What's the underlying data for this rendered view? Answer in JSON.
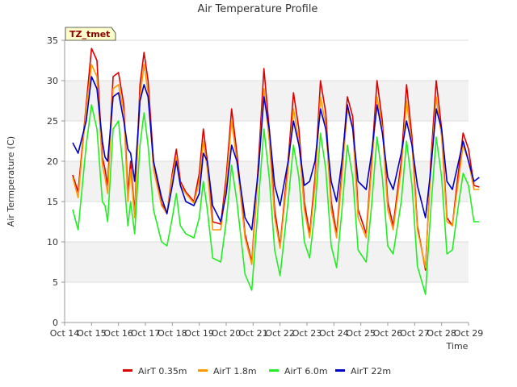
{
  "chart_data": {
    "type": "line",
    "title": "Air Temperature Profile",
    "xlabel": "Time",
    "ylabel": "Air Termperature (C)",
    "annotation": "TZ_tmet",
    "xlim": [
      14,
      29
    ],
    "ylim": [
      0,
      35
    ],
    "x_ticks": [
      {
        "value": 14,
        "label": "Oct 14"
      },
      {
        "value": 15,
        "label": "Oct 15"
      },
      {
        "value": 16,
        "label": "Oct 16"
      },
      {
        "value": 17,
        "label": "Oct 17"
      },
      {
        "value": 18,
        "label": "Oct 18"
      },
      {
        "value": 19,
        "label": "Oct 19"
      },
      {
        "value": 20,
        "label": "Oct 20"
      },
      {
        "value": 21,
        "label": "Oct 21"
      },
      {
        "value": 22,
        "label": "Oct 22"
      },
      {
        "value": 23,
        "label": "Oct 23"
      },
      {
        "value": 24,
        "label": "Oct 24"
      },
      {
        "value": 25,
        "label": "Oct 25"
      },
      {
        "value": 26,
        "label": "Oct 26"
      },
      {
        "value": 27,
        "label": "Oct 27"
      },
      {
        "value": 28,
        "label": "Oct 28"
      },
      {
        "value": 29,
        "label": "Oct 29"
      }
    ],
    "y_ticks": [
      0,
      5,
      10,
      15,
      20,
      25,
      30,
      35
    ],
    "legend_position": "bottom",
    "series": [
      {
        "name": "AirT 0.35m",
        "color": "#dd0000",
        "points": [
          [
            14.3,
            18.3
          ],
          [
            14.5,
            16.2
          ],
          [
            14.8,
            27.0
          ],
          [
            15.0,
            34.0
          ],
          [
            15.2,
            32.5
          ],
          [
            15.4,
            20.5
          ],
          [
            15.5,
            19.0
          ],
          [
            15.6,
            17.0
          ],
          [
            15.8,
            30.5
          ],
          [
            16.0,
            31.0
          ],
          [
            16.2,
            27.0
          ],
          [
            16.35,
            16.0
          ],
          [
            16.45,
            20.0
          ],
          [
            16.6,
            13.5
          ],
          [
            16.8,
            29.5
          ],
          [
            16.95,
            33.5
          ],
          [
            17.1,
            30.0
          ],
          [
            17.3,
            20.0
          ],
          [
            17.6,
            14.8
          ],
          [
            17.8,
            13.5
          ],
          [
            18.0,
            18.5
          ],
          [
            18.15,
            21.5
          ],
          [
            18.3,
            17.5
          ],
          [
            18.5,
            16.2
          ],
          [
            18.8,
            15.0
          ],
          [
            19.0,
            18.5
          ],
          [
            19.15,
            24.0
          ],
          [
            19.3,
            20.0
          ],
          [
            19.5,
            12.5
          ],
          [
            19.8,
            12.2
          ],
          [
            20.0,
            18.0
          ],
          [
            20.2,
            26.5
          ],
          [
            20.4,
            21.0
          ],
          [
            20.7,
            11.0
          ],
          [
            20.95,
            7.5
          ],
          [
            21.2,
            20.0
          ],
          [
            21.4,
            31.5
          ],
          [
            21.6,
            24.0
          ],
          [
            21.8,
            14.0
          ],
          [
            22.0,
            9.5
          ],
          [
            22.3,
            20.0
          ],
          [
            22.5,
            28.5
          ],
          [
            22.7,
            24.0
          ],
          [
            22.9,
            15.0
          ],
          [
            23.1,
            11.0
          ],
          [
            23.3,
            18.0
          ],
          [
            23.5,
            30.0
          ],
          [
            23.7,
            26.0
          ],
          [
            23.9,
            15.0
          ],
          [
            24.1,
            11.0
          ],
          [
            24.3,
            19.0
          ],
          [
            24.5,
            28.0
          ],
          [
            24.7,
            25.5
          ],
          [
            24.9,
            14.0
          ],
          [
            25.2,
            11.0
          ],
          [
            25.4,
            20.0
          ],
          [
            25.6,
            30.0
          ],
          [
            25.8,
            25.0
          ],
          [
            26.0,
            15.0
          ],
          [
            26.2,
            12.0
          ],
          [
            26.5,
            20.0
          ],
          [
            26.7,
            29.5
          ],
          [
            26.9,
            23.0
          ],
          [
            27.1,
            12.0
          ],
          [
            27.4,
            6.5
          ],
          [
            27.6,
            20.0
          ],
          [
            27.8,
            30.0
          ],
          [
            28.0,
            24.0
          ],
          [
            28.2,
            13.0
          ],
          [
            28.4,
            12.0
          ],
          [
            28.6,
            18.0
          ],
          [
            28.8,
            23.5
          ],
          [
            29.0,
            21.5
          ],
          [
            29.2,
            17.0
          ],
          [
            29.4,
            16.8
          ]
        ]
      },
      {
        "name": "AirT 1.8m",
        "color": "#ff9900",
        "points": [
          [
            14.3,
            18.0
          ],
          [
            14.5,
            15.5
          ],
          [
            14.8,
            26.5
          ],
          [
            15.0,
            32.0
          ],
          [
            15.2,
            30.5
          ],
          [
            15.4,
            19.5
          ],
          [
            15.5,
            18.0
          ],
          [
            15.6,
            16.0
          ],
          [
            15.8,
            29.0
          ],
          [
            16.0,
            29.5
          ],
          [
            16.2,
            26.0
          ],
          [
            16.35,
            15.0
          ],
          [
            16.45,
            19.0
          ],
          [
            16.6,
            13.0
          ],
          [
            16.8,
            28.0
          ],
          [
            16.95,
            32.0
          ],
          [
            17.1,
            28.5
          ],
          [
            17.3,
            19.0
          ],
          [
            17.6,
            14.5
          ],
          [
            17.8,
            13.5
          ],
          [
            18.0,
            18.0
          ],
          [
            18.15,
            20.5
          ],
          [
            18.3,
            17.0
          ],
          [
            18.5,
            16.0
          ],
          [
            18.8,
            14.8
          ],
          [
            19.0,
            17.5
          ],
          [
            19.15,
            22.5
          ],
          [
            19.3,
            19.0
          ],
          [
            19.5,
            11.5
          ],
          [
            19.8,
            11.5
          ],
          [
            20.0,
            17.0
          ],
          [
            20.2,
            25.0
          ],
          [
            20.4,
            20.0
          ],
          [
            20.7,
            10.5
          ],
          [
            20.95,
            7.2
          ],
          [
            21.2,
            19.0
          ],
          [
            21.4,
            29.0
          ],
          [
            21.6,
            22.5
          ],
          [
            21.8,
            13.0
          ],
          [
            22.0,
            9.2
          ],
          [
            22.3,
            19.0
          ],
          [
            22.5,
            26.5
          ],
          [
            22.7,
            22.5
          ],
          [
            22.9,
            14.0
          ],
          [
            23.1,
            10.5
          ],
          [
            23.3,
            17.0
          ],
          [
            23.5,
            28.0
          ],
          [
            23.7,
            24.5
          ],
          [
            23.9,
            14.0
          ],
          [
            24.1,
            10.5
          ],
          [
            24.3,
            18.0
          ],
          [
            24.5,
            26.5
          ],
          [
            24.7,
            24.0
          ],
          [
            24.9,
            13.0
          ],
          [
            25.2,
            10.5
          ],
          [
            25.4,
            19.0
          ],
          [
            25.6,
            28.0
          ],
          [
            25.8,
            24.0
          ],
          [
            26.0,
            14.0
          ],
          [
            26.2,
            11.5
          ],
          [
            26.5,
            19.0
          ],
          [
            26.7,
            27.5
          ],
          [
            26.9,
            22.0
          ],
          [
            27.1,
            11.5
          ],
          [
            27.4,
            6.8
          ],
          [
            27.6,
            19.0
          ],
          [
            27.8,
            28.0
          ],
          [
            28.0,
            23.0
          ],
          [
            28.2,
            12.5
          ],
          [
            28.4,
            12.0
          ],
          [
            28.6,
            17.0
          ],
          [
            28.8,
            22.0
          ],
          [
            29.0,
            20.0
          ],
          [
            29.2,
            16.5
          ],
          [
            29.4,
            16.5
          ]
        ]
      },
      {
        "name": "AirT 6.0m",
        "color": "#22ee22",
        "points": [
          [
            14.3,
            14.0
          ],
          [
            14.5,
            11.5
          ],
          [
            14.8,
            22.0
          ],
          [
            15.0,
            27.0
          ],
          [
            15.2,
            24.0
          ],
          [
            15.4,
            15.0
          ],
          [
            15.5,
            14.5
          ],
          [
            15.6,
            12.5
          ],
          [
            15.8,
            24.0
          ],
          [
            16.0,
            25.0
          ],
          [
            16.2,
            18.0
          ],
          [
            16.35,
            12.0
          ],
          [
            16.45,
            15.0
          ],
          [
            16.6,
            11.0
          ],
          [
            16.8,
            22.0
          ],
          [
            16.95,
            26.0
          ],
          [
            17.1,
            22.0
          ],
          [
            17.3,
            14.0
          ],
          [
            17.6,
            10.0
          ],
          [
            17.8,
            9.5
          ],
          [
            18.0,
            13.0
          ],
          [
            18.15,
            16.0
          ],
          [
            18.3,
            12.0
          ],
          [
            18.5,
            11.0
          ],
          [
            18.8,
            10.5
          ],
          [
            19.0,
            13.0
          ],
          [
            19.15,
            17.5
          ],
          [
            19.3,
            14.0
          ],
          [
            19.5,
            8.0
          ],
          [
            19.8,
            7.5
          ],
          [
            20.0,
            12.5
          ],
          [
            20.2,
            19.5
          ],
          [
            20.4,
            15.0
          ],
          [
            20.7,
            6.0
          ],
          [
            20.95,
            4.0
          ],
          [
            21.2,
            15.0
          ],
          [
            21.4,
            24.0
          ],
          [
            21.6,
            18.0
          ],
          [
            21.8,
            9.0
          ],
          [
            22.0,
            5.8
          ],
          [
            22.3,
            15.0
          ],
          [
            22.5,
            22.0
          ],
          [
            22.7,
            18.0
          ],
          [
            22.9,
            10.0
          ],
          [
            23.1,
            8.0
          ],
          [
            23.3,
            14.0
          ],
          [
            23.5,
            23.5
          ],
          [
            23.7,
            19.0
          ],
          [
            23.9,
            9.5
          ],
          [
            24.1,
            6.8
          ],
          [
            24.3,
            14.0
          ],
          [
            24.5,
            22.0
          ],
          [
            24.7,
            18.0
          ],
          [
            24.9,
            9.0
          ],
          [
            25.2,
            7.5
          ],
          [
            25.4,
            14.5
          ],
          [
            25.6,
            23.0
          ],
          [
            25.8,
            18.0
          ],
          [
            26.0,
            9.5
          ],
          [
            26.2,
            8.5
          ],
          [
            26.5,
            15.0
          ],
          [
            26.7,
            22.5
          ],
          [
            26.9,
            17.0
          ],
          [
            27.1,
            7.0
          ],
          [
            27.4,
            3.5
          ],
          [
            27.6,
            14.0
          ],
          [
            27.8,
            23.0
          ],
          [
            28.0,
            18.0
          ],
          [
            28.2,
            8.5
          ],
          [
            28.4,
            9.0
          ],
          [
            28.6,
            14.0
          ],
          [
            28.8,
            18.5
          ],
          [
            29.0,
            17.0
          ],
          [
            29.2,
            12.5
          ],
          [
            29.4,
            12.5
          ]
        ]
      },
      {
        "name": "AirT 22m",
        "color": "#0000cc",
        "points": [
          [
            14.3,
            22.3
          ],
          [
            14.5,
            21.0
          ],
          [
            14.8,
            25.0
          ],
          [
            15.0,
            30.5
          ],
          [
            15.2,
            29.0
          ],
          [
            15.4,
            22.5
          ],
          [
            15.5,
            20.5
          ],
          [
            15.6,
            20.0
          ],
          [
            15.8,
            28.0
          ],
          [
            16.0,
            28.5
          ],
          [
            16.2,
            25.0
          ],
          [
            16.35,
            21.5
          ],
          [
            16.45,
            21.0
          ],
          [
            16.6,
            17.5
          ],
          [
            16.8,
            27.5
          ],
          [
            16.95,
            29.5
          ],
          [
            17.1,
            28.0
          ],
          [
            17.3,
            20.0
          ],
          [
            17.6,
            15.5
          ],
          [
            17.8,
            13.5
          ],
          [
            18.0,
            17.0
          ],
          [
            18.15,
            20.0
          ],
          [
            18.3,
            17.0
          ],
          [
            18.5,
            15.0
          ],
          [
            18.8,
            14.5
          ],
          [
            19.0,
            16.0
          ],
          [
            19.15,
            21.0
          ],
          [
            19.3,
            20.0
          ],
          [
            19.5,
            14.5
          ],
          [
            19.8,
            12.5
          ],
          [
            20.0,
            16.0
          ],
          [
            20.2,
            22.0
          ],
          [
            20.4,
            20.0
          ],
          [
            20.7,
            13.0
          ],
          [
            20.95,
            11.5
          ],
          [
            21.2,
            19.0
          ],
          [
            21.4,
            28.0
          ],
          [
            21.6,
            24.0
          ],
          [
            21.8,
            17.0
          ],
          [
            22.0,
            14.5
          ],
          [
            22.3,
            20.0
          ],
          [
            22.5,
            25.0
          ],
          [
            22.7,
            22.0
          ],
          [
            22.9,
            17.0
          ],
          [
            23.1,
            17.5
          ],
          [
            23.3,
            20.0
          ],
          [
            23.5,
            26.5
          ],
          [
            23.7,
            24.0
          ],
          [
            23.9,
            17.5
          ],
          [
            24.1,
            15.0
          ],
          [
            24.3,
            20.0
          ],
          [
            24.5,
            27.0
          ],
          [
            24.7,
            24.0
          ],
          [
            24.9,
            17.5
          ],
          [
            25.2,
            16.5
          ],
          [
            25.4,
            21.0
          ],
          [
            25.6,
            27.0
          ],
          [
            25.8,
            23.5
          ],
          [
            26.0,
            18.0
          ],
          [
            26.2,
            16.5
          ],
          [
            26.5,
            21.0
          ],
          [
            26.7,
            25.0
          ],
          [
            26.9,
            22.0
          ],
          [
            27.1,
            17.0
          ],
          [
            27.4,
            13.0
          ],
          [
            27.6,
            19.0
          ],
          [
            27.8,
            26.5
          ],
          [
            28.0,
            24.0
          ],
          [
            28.2,
            17.5
          ],
          [
            28.4,
            16.5
          ],
          [
            28.6,
            19.5
          ],
          [
            28.8,
            22.5
          ],
          [
            29.0,
            20.0
          ],
          [
            29.2,
            17.5
          ],
          [
            29.4,
            18.0
          ]
        ]
      }
    ]
  }
}
